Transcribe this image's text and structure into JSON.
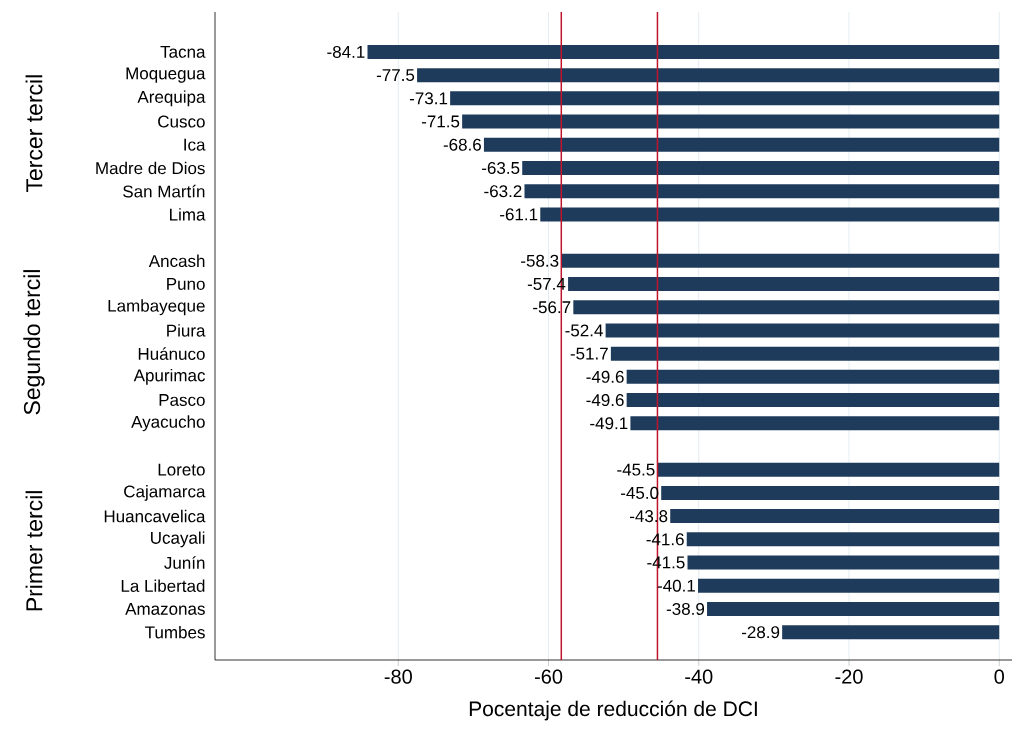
{
  "chart_data": {
    "type": "bar",
    "orientation": "horizontal",
    "xlabel": "Pocentaje de reducción de DCI",
    "categories": [
      "Tacna",
      "Moquegua",
      "Arequipa",
      "Cusco",
      "Ica",
      "Madre de Dios",
      "San Martín",
      "Lima",
      null,
      "Ancash",
      "Puno",
      "Lambayeque",
      "Piura",
      "Huánuco",
      "Apurimac",
      "Pasco",
      "Ayacucho",
      null,
      "Loreto",
      "Cajamarca",
      "Huancavelica",
      "Ucayali",
      "Junín",
      "La Libertad",
      "Amazonas",
      "Tumbes"
    ],
    "values": [
      -84.1,
      -77.5,
      -73.1,
      -71.5,
      -68.6,
      -63.5,
      -63.2,
      -61.1,
      null,
      -58.3,
      -57.4,
      -56.7,
      -52.4,
      -51.7,
      -49.6,
      -49.6,
      -49.1,
      null,
      -45.5,
      -45.0,
      -43.8,
      -41.6,
      -41.5,
      -40.1,
      -38.9,
      -28.9
    ],
    "value_labels": [
      "-84.1",
      "-77.5",
      "-73.1",
      "-71.5",
      "-68.6",
      "-63.5",
      "-63.2",
      "-61.1",
      null,
      "-58.3",
      "-57.4",
      "-56.7",
      "-52.4",
      "-51.7",
      "-49.6",
      "-49.6",
      "-49.1",
      null,
      "-45.5",
      "-45.0",
      "-43.8",
      "-41.6",
      "-41.5",
      "-40.1",
      "-38.9",
      "-28.9"
    ],
    "color": "#1f3b5c",
    "xlim": [
      -104.4,
      1.7
    ],
    "xticks": [
      -80,
      -60,
      -40,
      -20,
      0
    ],
    "grid": "x",
    "ref_lines": [
      {
        "axis": "x",
        "value": -58.3,
        "color": "#c0142c"
      },
      {
        "axis": "x",
        "value": -45.5,
        "color": "#c0142c"
      }
    ],
    "annotations": [
      "Tercer tercil",
      "Segundo tercil",
      "Primer tercil"
    ]
  }
}
